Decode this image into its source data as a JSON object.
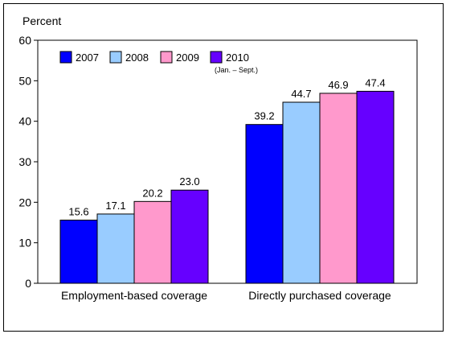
{
  "chart_data": {
    "type": "bar",
    "ylabel": "Percent",
    "ylim": [
      0,
      60
    ],
    "yticks": [
      0,
      10,
      20,
      30,
      40,
      50,
      60
    ],
    "categories": [
      "Employment-based coverage",
      "Directly purchased coverage"
    ],
    "series": [
      {
        "name": "2007",
        "color": "#0000ff",
        "values": [
          15.6,
          39.2
        ],
        "labels": [
          "15.6",
          "39.2"
        ]
      },
      {
        "name": "2008",
        "color": "#99ccff",
        "values": [
          17.1,
          44.7
        ],
        "labels": [
          "17.1",
          "44.7"
        ]
      },
      {
        "name": "2009",
        "color": "#ff99cc",
        "values": [
          20.2,
          46.9
        ],
        "labels": [
          "20.2",
          "46.9"
        ]
      },
      {
        "name": "2010",
        "note": "(Jan. – Sept.)",
        "color": "#6600ff",
        "values": [
          23.0,
          47.4
        ],
        "labels": [
          "23.0",
          "47.4"
        ]
      }
    ],
    "legend_position": "top-left",
    "grid": false
  }
}
